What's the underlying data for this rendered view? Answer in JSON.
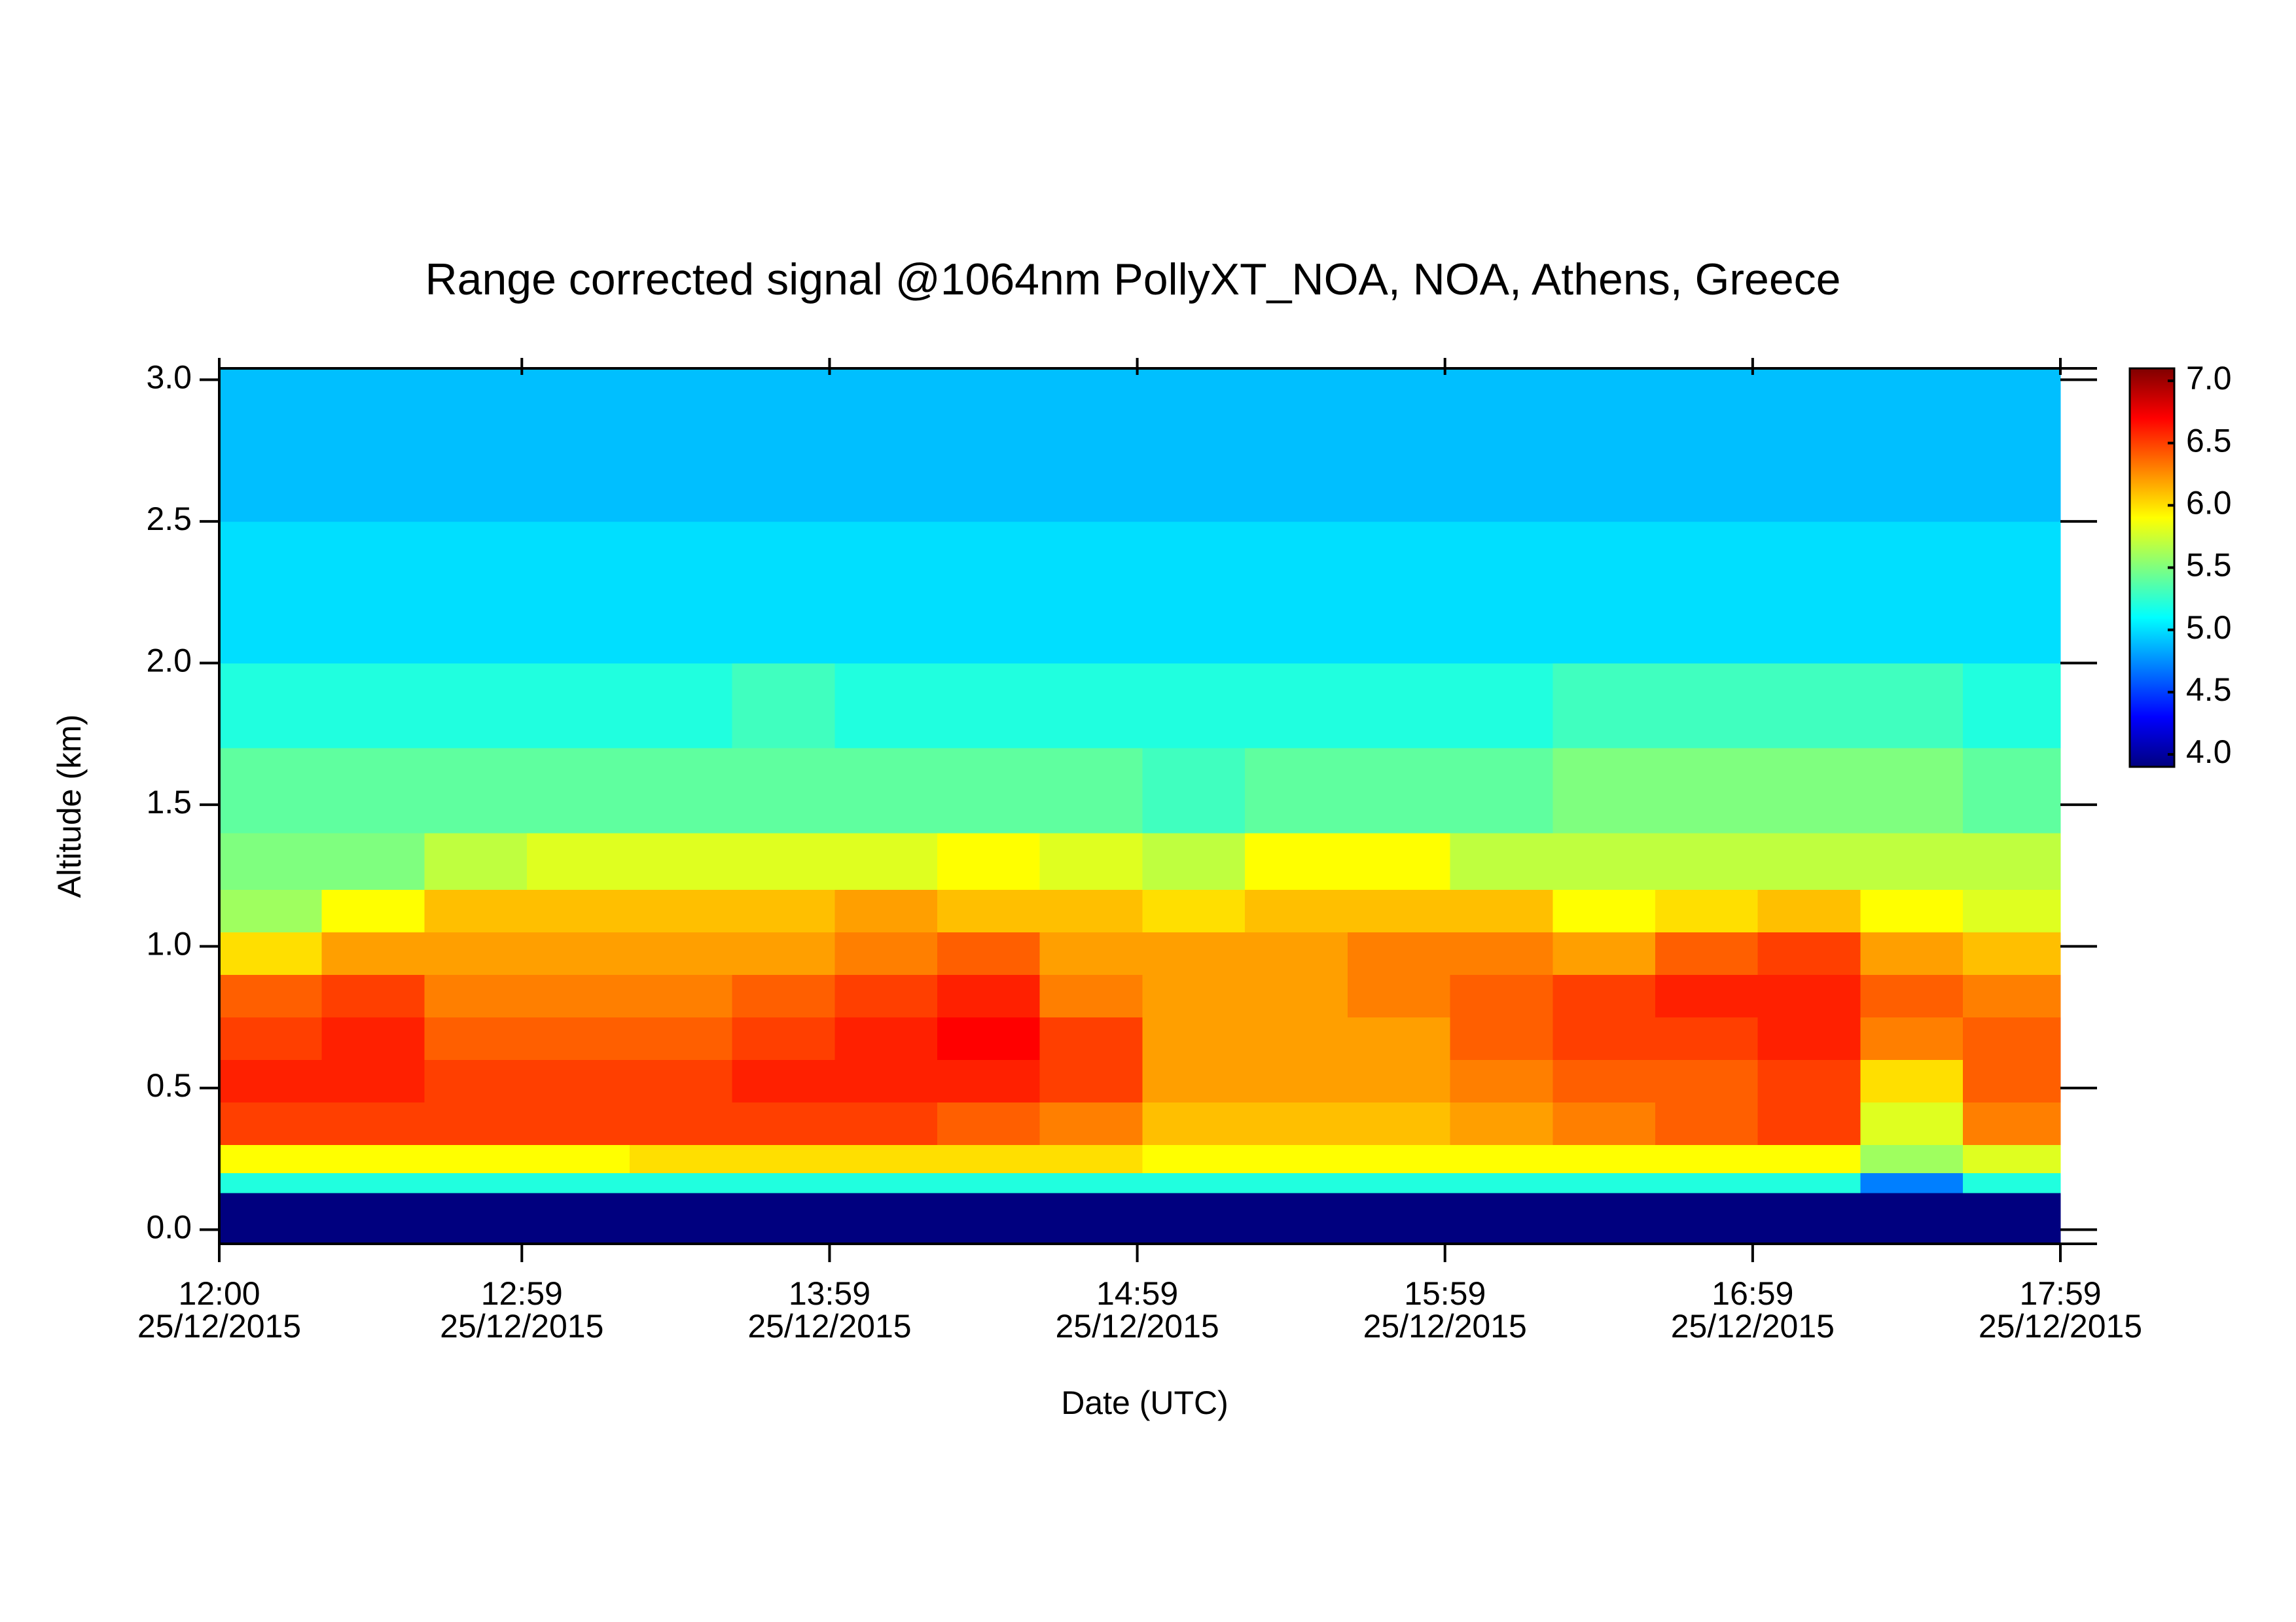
{
  "chart_data": {
    "type": "heatmap",
    "title": "Range corrected signal @1064nm  PollyXT_NOA, NOA, Athens, Greece",
    "x_label": "Date (UTC)",
    "y_label": "Altitude (km)",
    "xlim": [
      "25/12/2015 12:00",
      "25/12/2015 17:59"
    ],
    "xticks": [
      {
        "value": "25/12/2015 12:00",
        "label": [
          "12:00",
          "25/12/2015"
        ]
      },
      {
        "value": "25/12/2015 12:59",
        "label": [
          "12:59",
          "25/12/2015"
        ]
      },
      {
        "value": "25/12/2015 13:59",
        "label": [
          "13:59",
          "25/12/2015"
        ]
      },
      {
        "value": "25/12/2015 14:59",
        "label": [
          "14:59",
          "25/12/2015"
        ]
      },
      {
        "value": "25/12/2015 15:59",
        "label": [
          "15:59",
          "25/12/2015"
        ]
      },
      {
        "value": "25/12/2015 16:59",
        "label": [
          "16:59",
          "25/12/2015"
        ]
      },
      {
        "value": "25/12/2015 17:59",
        "label": [
          "17:59",
          "25/12/2015"
        ]
      }
    ],
    "ylim": [
      -0.05,
      3.04
    ],
    "yticks": [
      {
        "value": 0,
        "label": "0.0"
      },
      0.5,
      {
        "value": 1,
        "label": "1.0"
      },
      1.5,
      {
        "value": 2,
        "label": "2.0"
      },
      2.5,
      {
        "value": 3,
        "label": "3.0"
      }
    ],
    "xbins": [
      "25/12/2015 12:00",
      "25/12/2015 12:20",
      "25/12/2015 12:40",
      "25/12/2015 13:00",
      "25/12/2015 13:20",
      "25/12/2015 13:40",
      "25/12/2015 14:00",
      "25/12/2015 14:20",
      "25/12/2015 14:40",
      "25/12/2015 15:00",
      "25/12/2015 15:20",
      "25/12/2015 15:40",
      "25/12/2015 16:00",
      "25/12/2015 16:20",
      "25/12/2015 16:40",
      "25/12/2015 17:00",
      "25/12/2015 17:20",
      "25/12/2015 17:40",
      "25/12/2015 17:59"
    ],
    "ybins": [
      -0.05,
      0.13,
      0.2,
      0.3,
      0.45,
      0.6,
      0.75,
      0.9,
      1.05,
      1.2,
      1.4,
      1.7,
      2.0,
      2.5,
      3.04
    ],
    "values": [
      [
        3.9,
        3.9,
        3.9,
        3.9,
        3.9,
        3.9,
        3.9,
        3.9,
        3.9,
        3.9,
        3.9,
        3.9,
        3.9,
        3.9,
        3.9,
        3.9,
        3.9,
        3.9
      ],
      [
        5.2,
        5.2,
        5.2,
        5.2,
        5.2,
        5.2,
        5.2,
        5.2,
        5.2,
        5.2,
        5.2,
        5.2,
        5.2,
        5.2,
        5.2,
        5.2,
        4.7,
        5.2
      ],
      [
        5.9,
        5.9,
        5.9,
        5.9,
        6.0,
        6.0,
        6.0,
        6.0,
        6.0,
        5.9,
        5.9,
        5.9,
        5.9,
        5.9,
        5.9,
        5.9,
        5.6,
        5.8
      ],
      [
        6.5,
        6.5,
        6.5,
        6.5,
        6.5,
        6.5,
        6.5,
        6.4,
        6.3,
        6.1,
        6.1,
        6.1,
        6.2,
        6.3,
        6.4,
        6.5,
        5.8,
        6.3
      ],
      [
        6.6,
        6.6,
        6.5,
        6.5,
        6.5,
        6.6,
        6.6,
        6.6,
        6.5,
        6.2,
        6.2,
        6.2,
        6.3,
        6.4,
        6.4,
        6.5,
        6.0,
        6.4
      ],
      [
        6.5,
        6.6,
        6.4,
        6.4,
        6.4,
        6.5,
        6.6,
        6.7,
        6.5,
        6.2,
        6.2,
        6.2,
        6.4,
        6.5,
        6.5,
        6.6,
        6.3,
        6.4
      ],
      [
        6.4,
        6.5,
        6.3,
        6.3,
        6.3,
        6.4,
        6.5,
        6.6,
        6.3,
        6.2,
        6.2,
        6.3,
        6.4,
        6.5,
        6.6,
        6.6,
        6.4,
        6.3
      ],
      [
        6.0,
        6.2,
        6.2,
        6.2,
        6.2,
        6.2,
        6.3,
        6.4,
        6.2,
        6.2,
        6.2,
        6.3,
        6.3,
        6.2,
        6.4,
        6.5,
        6.2,
        6.1
      ],
      [
        5.6,
        5.9,
        6.1,
        6.1,
        6.1,
        6.1,
        6.2,
        6.1,
        6.1,
        6.0,
        6.1,
        6.1,
        6.1,
        5.9,
        6.0,
        6.1,
        5.9,
        5.8
      ],
      [
        5.5,
        5.5,
        5.7,
        5.8,
        5.8,
        5.8,
        5.8,
        5.9,
        5.8,
        5.7,
        5.9,
        5.9,
        5.7,
        5.7,
        5.7,
        5.7,
        5.7,
        5.7
      ],
      [
        5.4,
        5.4,
        5.4,
        5.4,
        5.4,
        5.4,
        5.4,
        5.4,
        5.4,
        5.3,
        5.4,
        5.4,
        5.4,
        5.5,
        5.5,
        5.5,
        5.5,
        5.4
      ],
      [
        5.2,
        5.2,
        5.2,
        5.2,
        5.2,
        5.3,
        5.2,
        5.2,
        5.2,
        5.2,
        5.2,
        5.2,
        5.2,
        5.3,
        5.3,
        5.3,
        5.3,
        5.2
      ],
      [
        5.0,
        5.0,
        5.0,
        5.0,
        5.0,
        5.0,
        5.0,
        5.0,
        5.0,
        5.0,
        5.0,
        5.0,
        5.0,
        5.0,
        5.0,
        5.0,
        5.0,
        5.0
      ],
      [
        4.9,
        4.9,
        4.9,
        4.9,
        4.9,
        4.9,
        4.9,
        4.9,
        4.9,
        4.9,
        4.9,
        4.9,
        4.9,
        4.9,
        4.9,
        4.9,
        4.9,
        4.9
      ]
    ],
    "colormap": [
      "#00007f",
      "#0000ff",
      "#007fff",
      "#00ffff",
      "#7fff7f",
      "#ffff00",
      "#ff7f00",
      "#ff0000",
      "#7f0000"
    ],
    "clim": [
      3.9,
      7.1
    ],
    "cticks": [
      {
        "value": 4,
        "label": "4.0"
      },
      4.5,
      {
        "value": 5,
        "label": "5.0"
      },
      5.5,
      {
        "value": 6,
        "label": "6.0"
      },
      6.5,
      {
        "value": 7,
        "label": "7.0"
      }
    ]
  }
}
